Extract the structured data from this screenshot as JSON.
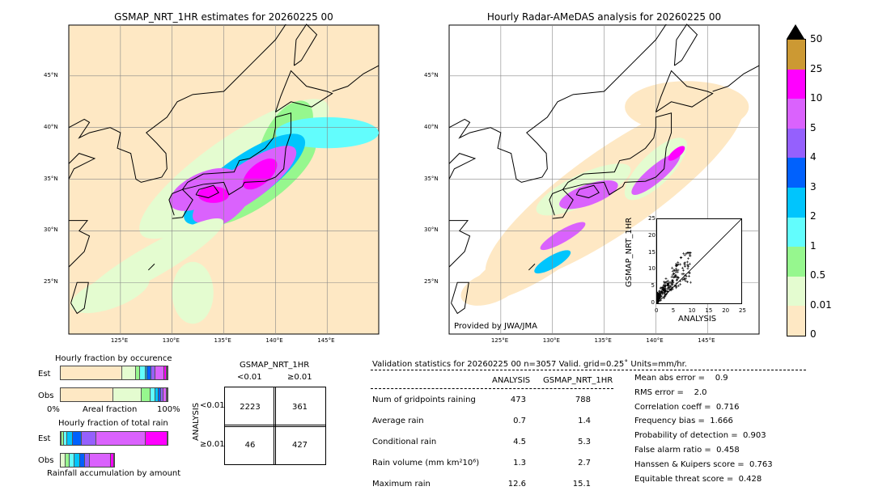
{
  "left_map": {
    "title": "GSMAP_NRT_1HR estimates for 20260225 00"
  },
  "right_map": {
    "title": "Hourly Radar-AMeDAS analysis for 20260225 00",
    "credit": "Provided by JWA/JMA"
  },
  "lat_ticks": [
    "45°N",
    "40°N",
    "35°N",
    "30°N",
    "25°N"
  ],
  "lon_ticks": [
    "125°E",
    "130°E",
    "135°E",
    "140°E",
    "145°E"
  ],
  "colorbar": {
    "labels": [
      "0",
      "0.01",
      "0.5",
      "1",
      "2",
      "3",
      "4",
      "5",
      "10",
      "25",
      "50"
    ],
    "colors": [
      "#fee8c4",
      "#e4fcd0",
      "#96f78e",
      "#62fdfd",
      "#00c5fd",
      "#0061fd",
      "#9560fd",
      "#da62fd",
      "#ff00ff",
      "#cc9933"
    ]
  },
  "scatter": {
    "ylabel": "GSMAP_NRT_1HR",
    "xlabel": "ANALYSIS",
    "ticks": [
      "0",
      "5",
      "10",
      "15",
      "20",
      "25"
    ]
  },
  "occurrence": {
    "title": "Hourly fraction by occurence",
    "est_label": "Est",
    "obs_label": "Obs",
    "axis_left": "0%",
    "axis_mid": "Areal fraction",
    "axis_right": "100%",
    "est": [
      56,
      12,
      4,
      5,
      2,
      3,
      4,
      8,
      2,
      1
    ],
    "obs": [
      49,
      27,
      8,
      5,
      3,
      2,
      2,
      3,
      1,
      0
    ]
  },
  "total_rain": {
    "title": "Hourly fraction of total rain",
    "est_label": "Est",
    "obs_label": "Obs",
    "footer": "Rainfall accumulation by amount",
    "est": [
      1,
      2,
      3,
      5,
      8,
      13,
      45,
      20,
      0
    ],
    "obs": [
      4,
      4,
      4,
      5,
      4,
      4,
      18,
      3,
      0
    ]
  },
  "contingency": {
    "title": "GSMAP_NRT_1HR",
    "col1": "<0.01",
    "col2": "≥0.01",
    "row_axis": "ANALYSIS",
    "row1": "<0.01",
    "row2": "≥0.01",
    "cells": [
      "2223",
      "361",
      "46",
      "427"
    ]
  },
  "stats": {
    "header": "Validation statistics for 20260225 00  n=3057 Valid. grid=0.25˚ Units=mm/hr.",
    "col_analysis": "ANALYSIS",
    "col_gsmap": "GSMAP_NRT_1HR",
    "rows": [
      {
        "label": "Num of gridpoints raining",
        "a": "473",
        "g": "788"
      },
      {
        "label": "Average rain",
        "a": "0.7",
        "g": "1.4"
      },
      {
        "label": "Conditional rain",
        "a": "4.5",
        "g": "5.3"
      },
      {
        "label": "Rain volume (mm km²10⁶)",
        "a": "1.3",
        "g": "2.7"
      },
      {
        "label": "Maximum rain",
        "a": "12.6",
        "g": "15.1"
      }
    ],
    "scores": [
      "Mean abs error =    0.9",
      "RMS error =    2.0",
      "Correlation coeff =  0.716",
      "Frequency bias =  1.666",
      "Probability of detection =  0.903",
      "False alarm ratio =  0.458",
      "Hanssen & Kuipers score =  0.763",
      "Equitable threat score =  0.428"
    ]
  }
}
